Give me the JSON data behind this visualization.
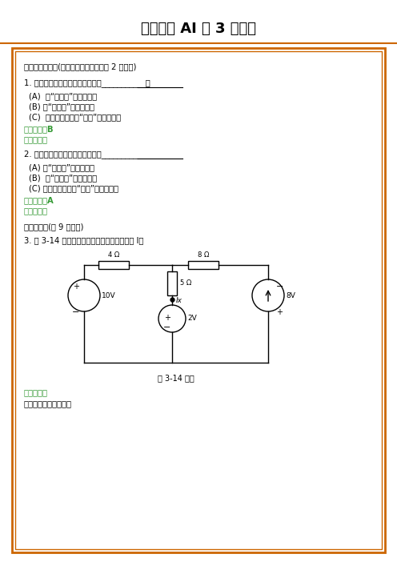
{
  "title": "电路分析 AI 第 3 次作业",
  "title_fontsize": 14,
  "border_color": "#CC6600",
  "background_color": "#FFFFFF",
  "section1_header": "一、单项选择题(只有一个选项正确，共 2 道小题)",
  "q1_text": "1. 在电路中将电压源置零，指的是___________。",
  "q1_a": "(A)  用“断开线”替代电压源",
  "q1_b": "(B) 用“短路线”替代电压源",
  "q1_c": "(C)  用数值不为零的“电阔”替代电压源",
  "q1_answer": "正确答案：B",
  "q1_ref": "解答参考：",
  "q2_text": "2. 在电路中将电流源置零，指的是___________",
  "q2_a": "(A) 用“断开线”替代电流源",
  "q2_b": "(B)  用“短路线”替代电流源",
  "q2_c": "(C) 用数值不为零的“电阔”替代电流源",
  "q2_answer": "正确答案：A",
  "q2_ref": "解答参考：",
  "section4_header": "四、主观题(共 9 道小题)",
  "q3_text": "3. 题 3-14 图示电路，试用网孔电流法求电流 I。",
  "circuit_caption": "题 3-14 图：",
  "ref_answer": "参考答案：",
  "ref_note": "解：网孔电流如图所设",
  "green_color": "#339933",
  "red_color": "#CC0000",
  "black_color": "#000000",
  "gray_color": "#666666"
}
